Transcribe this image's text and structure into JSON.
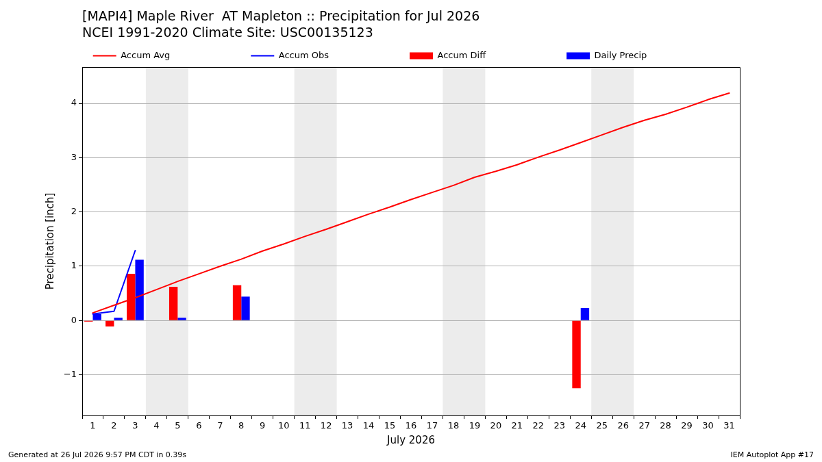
{
  "chart_data": {
    "type": "bar",
    "title": "[MAPI4] Maple River  AT Mapleton :: Precipitation for Jul 2026",
    "subtitle": "NCEI 1991-2020 Climate Site: USC00135123",
    "xlabel": "July 2026",
    "ylabel": "Precipitation [inch]",
    "x": [
      1,
      2,
      3,
      4,
      5,
      6,
      7,
      8,
      9,
      10,
      11,
      12,
      13,
      14,
      15,
      16,
      17,
      18,
      19,
      20,
      21,
      22,
      23,
      24,
      25,
      26,
      27,
      28,
      29,
      30,
      31
    ],
    "series": [
      {
        "name": "Accum Avg",
        "type": "line",
        "color": "#ff0000",
        "values": [
          0.14,
          0.28,
          0.42,
          0.57,
          0.72,
          0.86,
          1.0,
          1.13,
          1.28,
          1.41,
          1.55,
          1.68,
          1.82,
          1.96,
          2.09,
          2.23,
          2.36,
          2.49,
          2.64,
          2.75,
          2.87,
          3.01,
          3.14,
          3.28,
          3.42,
          3.56,
          3.69,
          3.8,
          3.93,
          4.07,
          4.19
        ]
      },
      {
        "name": "Accum Obs",
        "type": "line",
        "color": "#0000ff",
        "x": [
          1,
          2,
          3
        ],
        "values": [
          0.12,
          0.17,
          1.29
        ]
      },
      {
        "name": "Accum Diff",
        "color": "#ff0000",
        "x": [
          1,
          2,
          3,
          5,
          8,
          24
        ],
        "values": [
          -0.02,
          -0.11,
          0.86,
          0.62,
          0.65,
          -1.25
        ]
      },
      {
        "name": "Daily Precip",
        "color": "#0000ff",
        "x": [
          1,
          2,
          3,
          5,
          8,
          24
        ],
        "values": [
          0.12,
          0.05,
          1.12,
          0.05,
          0.44,
          0.23
        ]
      }
    ],
    "xlim": [
      0.5,
      31.5
    ],
    "xticks": [
      1,
      2,
      3,
      4,
      5,
      6,
      7,
      8,
      9,
      10,
      11,
      12,
      13,
      14,
      15,
      16,
      17,
      18,
      19,
      20,
      21,
      22,
      23,
      24,
      25,
      26,
      27,
      28,
      29,
      30,
      31
    ],
    "ylim": [
      -1.75,
      4.67
    ],
    "yticks": [
      {
        "value": -1,
        "label": "−1"
      },
      0,
      1,
      2,
      3,
      4
    ],
    "bands": [
      {
        "axis": "x",
        "from": 3.5,
        "to": 5.5,
        "color": "#ececec"
      },
      {
        "axis": "x",
        "from": 10.5,
        "to": 12.5,
        "color": "#ececec"
      },
      {
        "axis": "x",
        "from": 17.5,
        "to": 19.5,
        "color": "#ececec"
      },
      {
        "axis": "x",
        "from": 24.5,
        "to": 26.5,
        "color": "#ececec"
      }
    ],
    "grid": "y",
    "legend": "top",
    "annotations": [
      "Generated at 26 Jul 2026 9:57 PM CDT in 0.39s",
      "IEM Autoplot App #17"
    ]
  }
}
